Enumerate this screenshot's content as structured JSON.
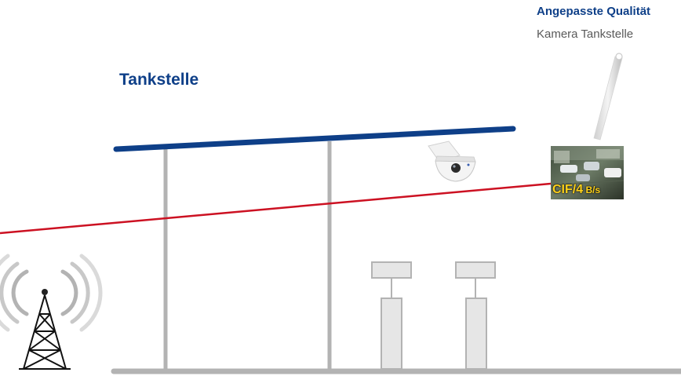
{
  "location": {
    "title": "Tankstelle"
  },
  "callout": {
    "title": "Angepasste Qualität",
    "subtitle": "Kamera Tankstelle"
  },
  "stream": {
    "resolution": "CIF/",
    "fps": "4",
    "unit": " B/s"
  },
  "colors": {
    "accent_blue": "#0e3f88",
    "signal_red": "#cc1122",
    "structure_gray": "#b3b3b3",
    "label_yellow": "#ffd21a"
  },
  "icons": {
    "antenna": "radio-tower-icon",
    "camera": "dome-camera-icon",
    "snapshot": "camera-snapshot-thumbnail"
  }
}
